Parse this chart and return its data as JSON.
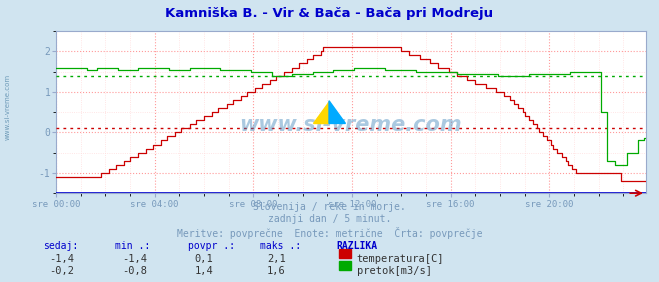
{
  "title": "Kamniška B. - Vir & Bača - Bača pri Modreju",
  "title_color": "#0000cc",
  "bg_color": "#d0e4f0",
  "plot_bg_color": "#ffffff",
  "grid_color_major": "#ff9999",
  "grid_color_minor": "#ffdddd",
  "tick_color": "#7799bb",
  "xtick_labels": [
    "sre 00:00",
    "sre 04:00",
    "sre 08:00",
    "sre 12:00",
    "sre 16:00",
    "sre 20:00"
  ],
  "xtick_positions": [
    0,
    48,
    96,
    144,
    192,
    240
  ],
  "ylim": [
    -1.5,
    2.5
  ],
  "yticks": [
    -1,
    0,
    1,
    2
  ],
  "temp_color": "#cc0000",
  "flow_color": "#00aa00",
  "avg_temp_value": 0.1,
  "avg_flow_value": 1.4,
  "watermark_text": "www.si-vreme.com",
  "footer_line1": "Slovenija / reke in morje.",
  "footer_line2": "zadnji dan / 5 minut.",
  "footer_line3": "Meritve: povprečne  Enote: metrične  Črta: povprečje",
  "leg_headers": [
    "sedaj:",
    "min .:",
    "povpr .:",
    "maks .:",
    "RAZLIKA"
  ],
  "leg_row1": [
    "-1,4",
    "-1,4",
    "0,1",
    "2,1"
  ],
  "leg_row2": [
    "-0,2",
    "-0,8",
    "1,4",
    "1,6"
  ],
  "leg_label1": "temperatura[C]",
  "leg_label2": "pretok[m3/s]",
  "n_points": 288,
  "spine_color": "#99aacc",
  "bottom_line_color": "#0000cc",
  "arrow_color": "#cc0000"
}
